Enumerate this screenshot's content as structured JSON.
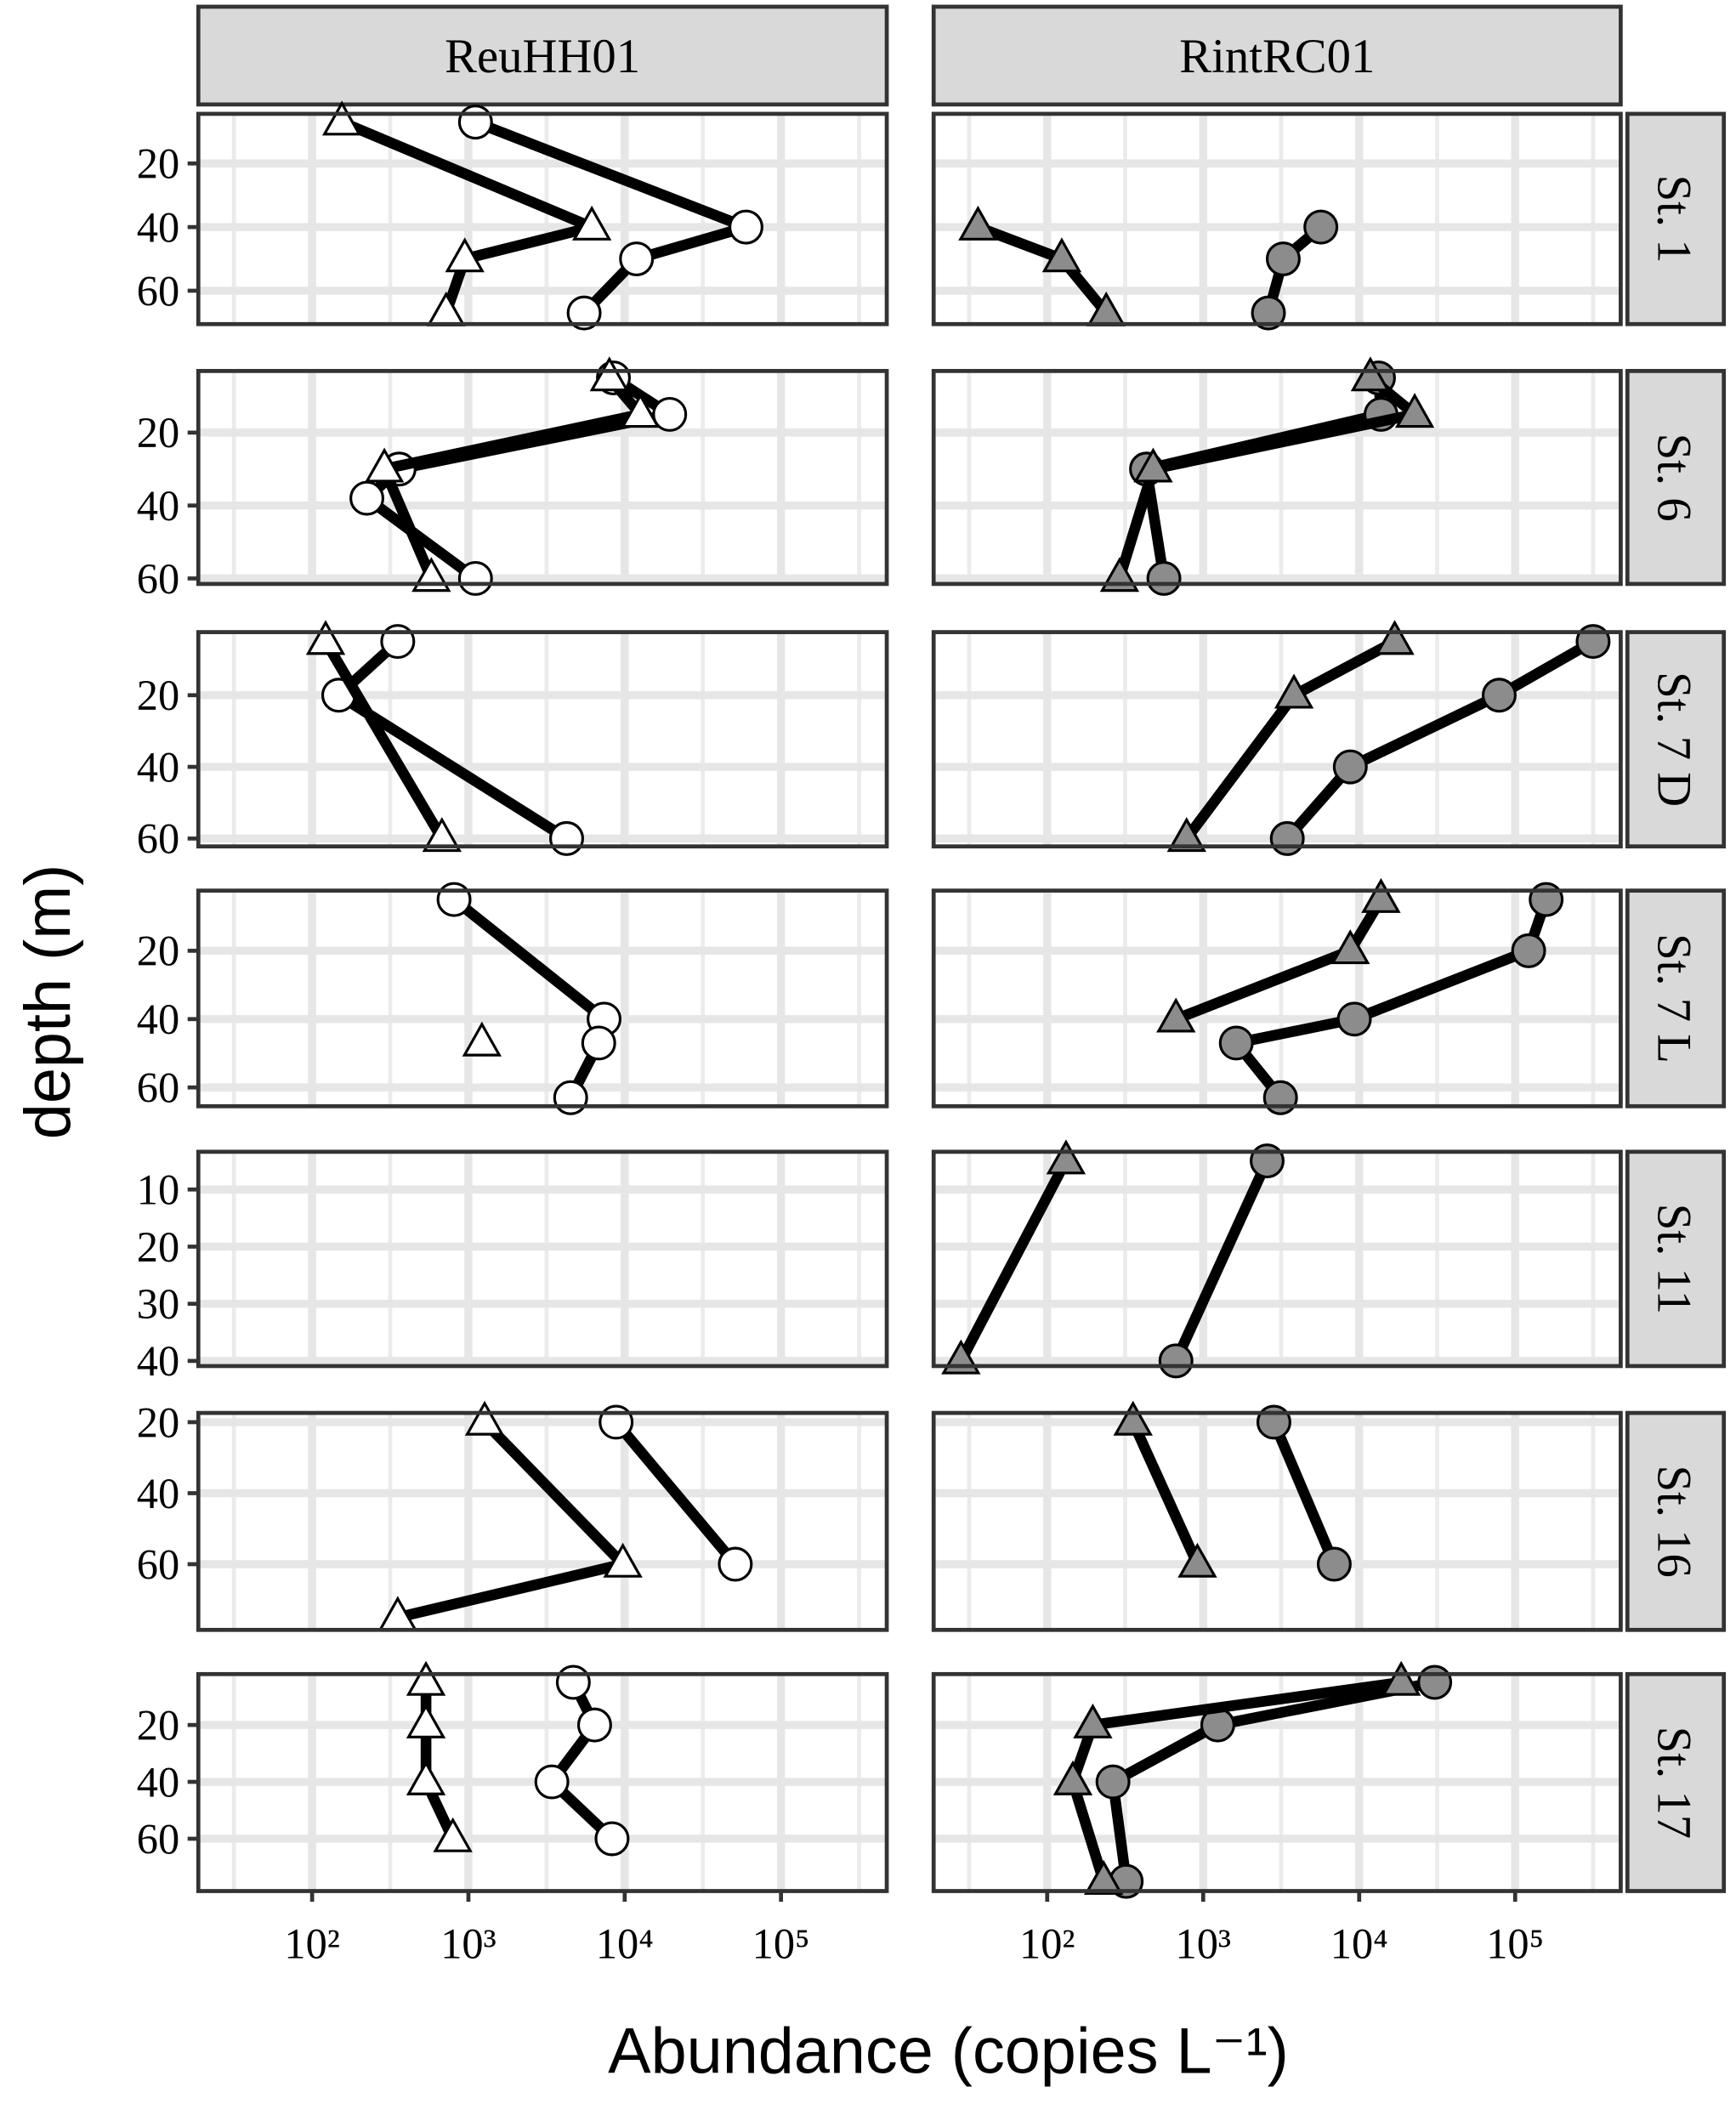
{
  "chart_data": {
    "type": "line",
    "xlabel": "Abundance (copies L⁻¹)",
    "ylabel": "depth (m)",
    "x_log": true,
    "y_reversed": true,
    "grid": true,
    "xlim": [
      18.7,
      475000
    ],
    "xticks": [
      {
        "value": 100,
        "label": "10²"
      },
      {
        "value": 1000,
        "label": "10³"
      },
      {
        "value": 10000,
        "label": "10⁴"
      },
      {
        "value": 100000,
        "label": "10⁵"
      }
    ],
    "xminor": [
      31.6,
      316,
      3162,
      31623,
      316228
    ],
    "columns": [
      "ReuHH01",
      "RintRC01"
    ],
    "rows": [
      {
        "label": "St. 1",
        "ylim": [
          4.4,
          70.5
        ],
        "yticks": [
          20,
          40,
          60
        ],
        "panels": [
          {
            "series": [
              {
                "marker": "circle",
                "color": "#ffffff",
                "x": [
                  1110,
                  59700,
                  11900,
                  5500
                ],
                "y": [
                  7,
                  40,
                  50,
                  67
                ]
              },
              {
                "marker": "triangle",
                "color": "#ffffff",
                "x": [
                  155,
                  6160,
                  948,
                  720
                ],
                "y": [
                  7,
                  40,
                  50,
                  67
                ]
              }
            ]
          },
          {
            "series": [
              {
                "marker": "circle",
                "color": "#8c8c8c",
                "x": [
                  5680,
                  3260,
                  2620
                ],
                "y": [
                  40,
                  50,
                  67
                ]
              },
              {
                "marker": "triangle",
                "color": "#8c8c8c",
                "x": [
                  36,
                  124,
                  239
                ],
                "y": [
                  40,
                  50,
                  67
                ]
              }
            ]
          }
        ]
      },
      {
        "label": "St. 6",
        "ylim": [
          3.1,
          61.5
        ],
        "yticks": [
          20,
          40,
          60
        ],
        "panels": [
          {
            "series": [
              {
                "marker": "circle",
                "color": "#ffffff",
                "x": [
                  8470,
                  19400,
                  360,
                  224,
                  1110
                ],
                "y": [
                  5,
                  15,
                  30,
                  38,
                  60
                ]
              },
              {
                "marker": "triangle",
                "color": "#ffffff",
                "x": [
                  7980,
                  12600,
                  290,
                  579
                ],
                "y": [
                  5,
                  15,
                  30,
                  60
                ]
              }
            ]
          },
          {
            "series": [
              {
                "marker": "circle",
                "color": "#8c8c8c",
                "x": [
                  13300,
                  13800,
                  433,
                  560
                ],
                "y": [
                  5,
                  15,
                  30,
                  60
                ]
              },
              {
                "marker": "triangle",
                "color": "#8c8c8c",
                "x": [
                  11800,
                  22700,
                  478,
                  291
                ],
                "y": [
                  5,
                  15,
                  30,
                  60
                ]
              }
            ]
          }
        ]
      },
      {
        "label": "St. 7 D",
        "ylim": [
          2.4,
          62.2
        ],
        "yticks": [
          20,
          40,
          60
        ],
        "panels": [
          {
            "series": [
              {
                "marker": "circle",
                "color": "#ffffff",
                "x": [
                  353,
                  148,
                  4250
                ],
                "y": [
                  5,
                  20,
                  60
                ]
              },
              {
                "marker": "triangle",
                "color": "#ffffff",
                "x": [
                  122,
                  677
                ],
                "y": [
                  5,
                  60
                ]
              }
            ]
          },
          {
            "series": [
              {
                "marker": "circle",
                "color": "#8c8c8c",
                "x": [
                  316000,
                  79000,
                  8770,
                  3460
                ],
                "y": [
                  5,
                  20,
                  40,
                  60
                ]
              },
              {
                "marker": "triangle",
                "color": "#8c8c8c",
                "x": [
                  16900,
                  3820,
                  783
                ],
                "y": [
                  5,
                  20,
                  60
                ]
              }
            ]
          }
        ]
      },
      {
        "label": "St. 7 L",
        "ylim": [
          2.4,
          65.5
        ],
        "yticks": [
          20,
          40,
          60
        ],
        "panels": [
          {
            "series": [
              {
                "marker": "circle",
                "color": "#ffffff",
                "x": [
                  809,
                  7380,
                  6820,
                  4510
                ],
                "y": [
                  5,
                  40,
                  47,
                  63
                ]
              },
              {
                "marker": "triangle",
                "color": "#ffffff",
                "x": [
                  1220
                ],
                "y": [
                  47
                ]
              }
            ]
          },
          {
            "series": [
              {
                "marker": "circle",
                "color": "#8c8c8c",
                "x": [
                  158000,
                  122000,
                  9310,
                  1630,
                  3130
                ],
                "y": [
                  5,
                  20,
                  40,
                  47,
                  63
                ]
              },
              {
                "marker": "triangle",
                "color": "#8c8c8c",
                "x": [
                  13800,
                  8770,
                  669
                ],
                "y": [
                  5,
                  20,
                  40
                ]
              }
            ]
          }
        ]
      },
      {
        "label": "St. 11",
        "ylim": [
          3.4,
          40.9
        ],
        "yticks": [
          10,
          20,
          30,
          40
        ],
        "panels": [
          {
            "series": []
          },
          {
            "series": [
              {
                "marker": "circle",
                "color": "#8c8c8c",
                "x": [
                  2570,
                  669
                ],
                "y": [
                  5,
                  40
                ]
              },
              {
                "marker": "triangle",
                "color": "#8c8c8c",
                "x": [
                  132,
                  28
                ],
                "y": [
                  5,
                  40
                ]
              }
            ]
          }
        ]
      },
      {
        "label": "St. 16",
        "ylim": [
          17.4,
          78.5
        ],
        "yticks": [
          20,
          40,
          60
        ],
        "panels": [
          {
            "series": [
              {
                "marker": "circle",
                "color": "#ffffff",
                "x": [
                  8810,
                  51000
                ],
                "y": [
                  20,
                  60
                ]
              },
              {
                "marker": "triangle",
                "color": "#ffffff",
                "x": [
                  1270,
                  9730,
                  353
                ],
                "y": [
                  20,
                  60,
                  75
                ]
              }
            ]
          },
          {
            "series": [
              {
                "marker": "circle",
                "color": "#8c8c8c",
                "x": [
                  2840,
                  6920
                ],
                "y": [
                  20,
                  60
                ]
              },
              {
                "marker": "triangle",
                "color": "#8c8c8c",
                "x": [
                  355,
                  918
                ],
                "y": [
                  20,
                  60
                ]
              }
            ]
          }
        ]
      },
      {
        "label": "St. 17",
        "ylim": [
          2.1,
          78.4
        ],
        "yticks": [
          20,
          40,
          60
        ],
        "panels": [
          {
            "series": [
              {
                "marker": "circle",
                "color": "#ffffff",
                "x": [
                  4690,
                  6420,
                  3420,
                  8300
                ],
                "y": [
                  5,
                  20,
                  40,
                  60
                ]
              },
              {
                "marker": "triangle",
                "color": "#ffffff",
                "x": [
                  535,
                  535,
                  535,
                  795
                ],
                "y": [
                  5,
                  20,
                  40,
                  60
                ]
              }
            ]
          },
          {
            "series": [
              {
                "marker": "circle",
                "color": "#8c8c8c",
                "x": [
                  30500,
                  1240,
                  264,
                  321
                ],
                "y": [
                  5,
                  20,
                  40,
                  75
                ]
              },
              {
                "marker": "triangle",
                "color": "#8c8c8c",
                "x": [
                  18600,
                  196,
                  146,
                  230
                ],
                "y": [
                  5,
                  20,
                  40,
                  75
                ]
              }
            ]
          }
        ]
      }
    ]
  }
}
